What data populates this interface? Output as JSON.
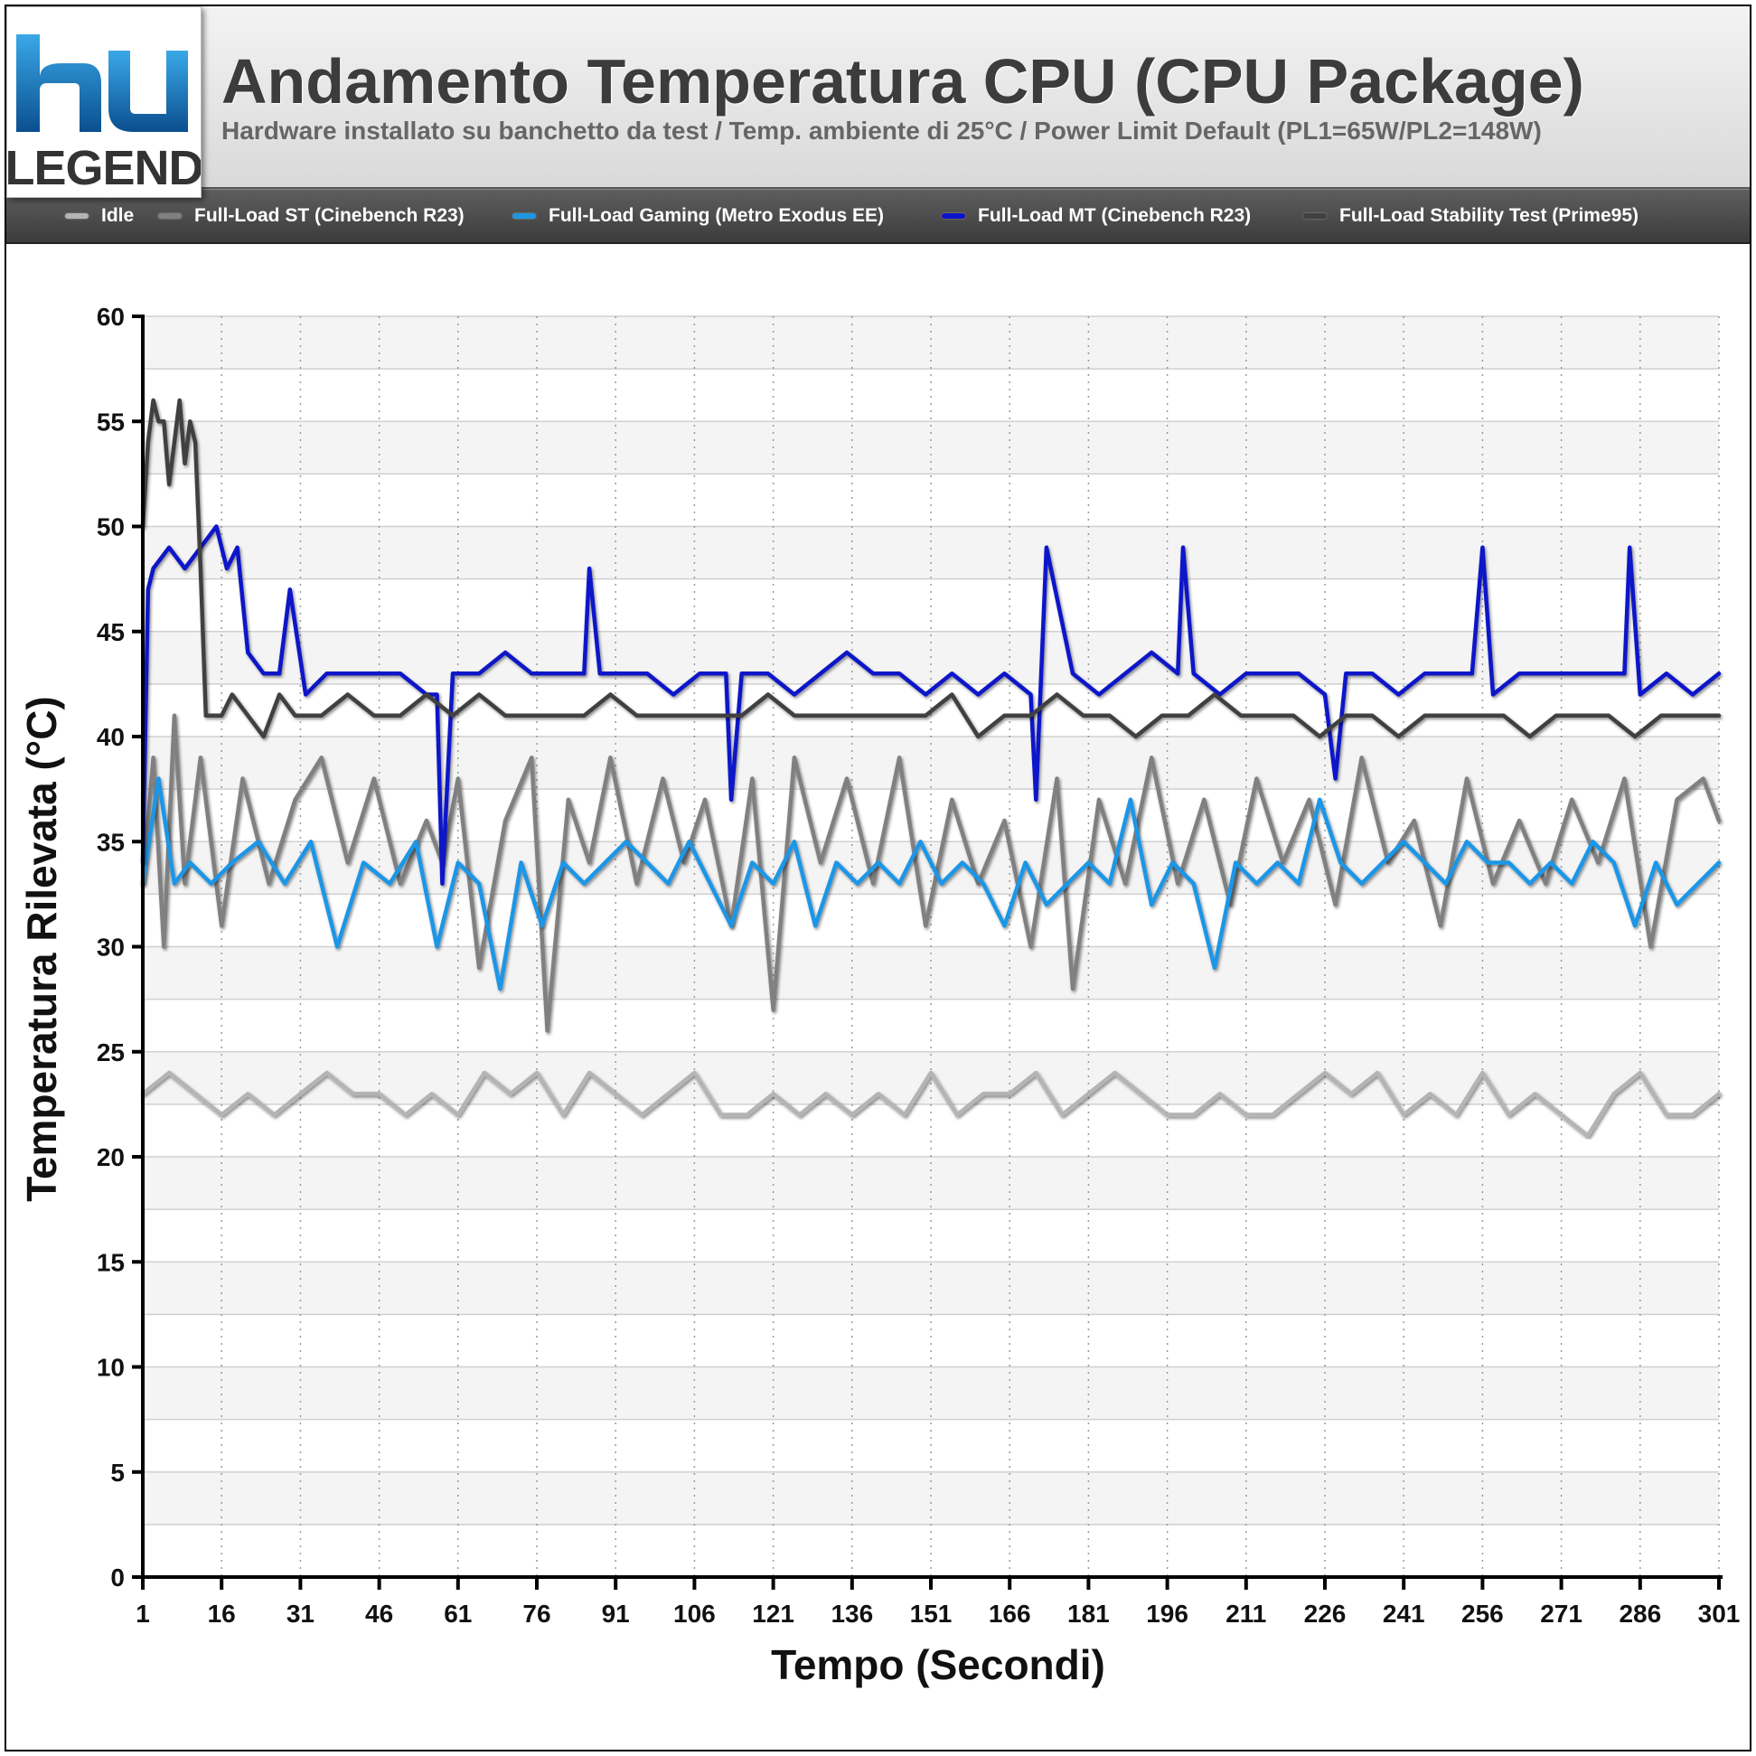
{
  "logo": {
    "mark": "hu",
    "text": "LEGEND"
  },
  "header": {
    "title": "Andamento Temperatura CPU (CPU Package)",
    "subtitle": "Hardware installato su banchetto da test / Temp. ambiente di 25°C / Power Limit Default (PL1=65W/PL2=148W)"
  },
  "chart_data": {
    "type": "line",
    "title": "Andamento Temperatura CPU (CPU Package)",
    "xlabel": "Tempo (Secondi)",
    "ylabel": "Temperatura Rilevata (°C)",
    "xlim": [
      1,
      301
    ],
    "ylim": [
      0,
      60
    ],
    "x_ticks": [
      1,
      16,
      31,
      46,
      61,
      76,
      91,
      106,
      121,
      136,
      151,
      166,
      181,
      196,
      211,
      226,
      241,
      256,
      271,
      286,
      301
    ],
    "y_ticks": [
      0,
      5,
      10,
      15,
      20,
      25,
      30,
      35,
      40,
      45,
      50,
      55,
      60
    ],
    "grid": true,
    "legend_position": "top",
    "series": [
      {
        "name": "Idle",
        "color": "#b4b4b4",
        "x": [
          1,
          6,
          11,
          16,
          21,
          26,
          31,
          36,
          41,
          46,
          51,
          56,
          61,
          66,
          71,
          76,
          81,
          86,
          91,
          96,
          101,
          106,
          111,
          116,
          121,
          126,
          131,
          136,
          141,
          146,
          151,
          156,
          161,
          166,
          171,
          176,
          181,
          186,
          191,
          196,
          201,
          206,
          211,
          216,
          221,
          226,
          231,
          236,
          241,
          246,
          251,
          256,
          261,
          266,
          271,
          276,
          281,
          286,
          291,
          296,
          301
        ],
        "values": [
          23,
          24,
          23,
          22,
          23,
          22,
          23,
          24,
          23,
          23,
          22,
          23,
          22,
          24,
          23,
          24,
          22,
          24,
          23,
          22,
          23,
          24,
          22,
          22,
          23,
          22,
          23,
          22,
          23,
          22,
          24,
          22,
          23,
          23,
          24,
          22,
          23,
          24,
          23,
          22,
          22,
          23,
          22,
          22,
          23,
          24,
          23,
          24,
          22,
          23,
          22,
          24,
          22,
          23,
          22,
          21,
          23,
          24,
          22,
          22,
          23
        ]
      },
      {
        "name": "Full-Load ST (Cinebench R23)",
        "color": "#808080",
        "x": [
          1,
          3,
          5,
          7,
          9,
          12,
          16,
          20,
          25,
          30,
          35,
          40,
          45,
          50,
          55,
          58,
          61,
          65,
          70,
          75,
          78,
          82,
          86,
          90,
          95,
          100,
          104,
          108,
          113,
          117,
          121,
          125,
          130,
          135,
          140,
          145,
          150,
          155,
          160,
          165,
          170,
          175,
          178,
          183,
          188,
          193,
          198,
          203,
          208,
          213,
          218,
          223,
          228,
          233,
          238,
          243,
          248,
          253,
          258,
          263,
          268,
          273,
          278,
          283,
          288,
          293,
          298,
          301
        ],
        "values": [
          33,
          39,
          30,
          41,
          33,
          39,
          31,
          38,
          33,
          37,
          39,
          34,
          38,
          33,
          36,
          34,
          38,
          29,
          36,
          39,
          26,
          37,
          34,
          39,
          33,
          38,
          34,
          37,
          31,
          38,
          27,
          39,
          34,
          38,
          33,
          39,
          31,
          37,
          33,
          36,
          30,
          38,
          28,
          37,
          33,
          39,
          33,
          37,
          32,
          38,
          34,
          37,
          32,
          39,
          34,
          36,
          31,
          38,
          33,
          36,
          33,
          37,
          34,
          38,
          30,
          37,
          38,
          36
        ]
      },
      {
        "name": "Full-Load Gaming (Metro Exodus EE)",
        "color": "#1e96e6",
        "x": [
          1,
          4,
          7,
          10,
          14,
          18,
          23,
          28,
          33,
          38,
          43,
          48,
          53,
          57,
          61,
          65,
          69,
          73,
          77,
          81,
          85,
          89,
          93,
          97,
          101,
          105,
          109,
          113,
          117,
          121,
          125,
          129,
          133,
          137,
          141,
          145,
          149,
          153,
          157,
          161,
          165,
          169,
          173,
          177,
          181,
          185,
          189,
          193,
          197,
          201,
          205,
          209,
          213,
          217,
          221,
          225,
          229,
          233,
          237,
          241,
          245,
          249,
          253,
          257,
          261,
          265,
          269,
          273,
          277,
          281,
          285,
          289,
          293,
          297,
          301
        ],
        "values": [
          33,
          38,
          33,
          34,
          33,
          34,
          35,
          33,
          35,
          30,
          34,
          33,
          35,
          30,
          34,
          33,
          28,
          34,
          31,
          34,
          33,
          34,
          35,
          34,
          33,
          35,
          33,
          31,
          34,
          33,
          35,
          31,
          34,
          33,
          34,
          33,
          35,
          33,
          34,
          33,
          31,
          34,
          32,
          33,
          34,
          33,
          37,
          32,
          34,
          33,
          29,
          34,
          33,
          34,
          33,
          37,
          34,
          33,
          34,
          35,
          34,
          33,
          35,
          34,
          34,
          33,
          34,
          33,
          35,
          34,
          31,
          34,
          32,
          33,
          34
        ]
      },
      {
        "name": "Full-Load MT (Cinebench R23)",
        "color": "#0a14c8",
        "x": [
          1,
          2,
          3,
          6,
          9,
          12,
          15,
          17,
          19,
          21,
          24,
          27,
          29,
          32,
          36,
          40,
          45,
          50,
          55,
          57,
          58,
          60,
          65,
          70,
          75,
          80,
          85,
          86,
          88,
          92,
          97,
          102,
          107,
          112,
          113,
          115,
          120,
          125,
          130,
          135,
          140,
          145,
          150,
          155,
          160,
          165,
          170,
          171,
          173,
          178,
          183,
          188,
          193,
          198,
          199,
          201,
          206,
          211,
          216,
          221,
          226,
          228,
          230,
          235,
          240,
          245,
          250,
          254,
          256,
          258,
          263,
          268,
          273,
          278,
          283,
          284,
          286,
          291,
          296,
          301
        ],
        "values": [
          34,
          47,
          48,
          49,
          48,
          49,
          50,
          48,
          49,
          44,
          43,
          43,
          47,
          42,
          43,
          43,
          43,
          43,
          42,
          42,
          33,
          43,
          43,
          44,
          43,
          43,
          43,
          48,
          43,
          43,
          43,
          42,
          43,
          43,
          37,
          43,
          43,
          42,
          43,
          44,
          43,
          43,
          42,
          43,
          42,
          43,
          42,
          37,
          49,
          43,
          42,
          43,
          44,
          43,
          49,
          43,
          42,
          43,
          43,
          43,
          42,
          38,
          43,
          43,
          42,
          43,
          43,
          43,
          49,
          42,
          43,
          43,
          43,
          43,
          43,
          49,
          42,
          43,
          42,
          43
        ]
      },
      {
        "name": "Full-Load Stability Test (Prime95)",
        "color": "#404040",
        "x": [
          1,
          2,
          3,
          4,
          5,
          6,
          8,
          9,
          10,
          11,
          12,
          13,
          14,
          15,
          16,
          18,
          21,
          24,
          27,
          30,
          35,
          40,
          45,
          50,
          55,
          60,
          65,
          70,
          75,
          80,
          85,
          90,
          95,
          100,
          105,
          110,
          115,
          120,
          125,
          130,
          135,
          140,
          145,
          150,
          155,
          160,
          165,
          170,
          175,
          180,
          185,
          190,
          195,
          200,
          205,
          210,
          215,
          220,
          225,
          230,
          235,
          240,
          245,
          250,
          255,
          260,
          265,
          270,
          275,
          280,
          285,
          290,
          295,
          301
        ],
        "values": [
          50,
          54,
          56,
          55,
          55,
          52,
          56,
          53,
          55,
          54,
          48,
          41,
          41,
          41,
          41,
          42,
          41,
          40,
          42,
          41,
          41,
          42,
          41,
          41,
          42,
          41,
          42,
          41,
          41,
          41,
          41,
          42,
          41,
          41,
          41,
          41,
          41,
          42,
          41,
          41,
          41,
          41,
          41,
          41,
          42,
          40,
          41,
          41,
          42,
          41,
          41,
          40,
          41,
          41,
          42,
          41,
          41,
          41,
          40,
          41,
          41,
          40,
          41,
          41,
          41,
          41,
          40,
          41,
          41,
          41,
          40,
          41,
          41,
          41
        ]
      }
    ]
  }
}
